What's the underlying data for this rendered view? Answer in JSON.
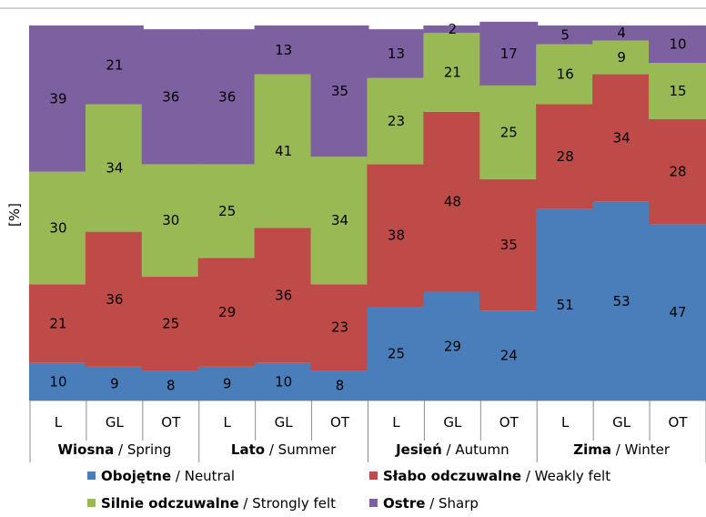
{
  "chart_data": {
    "type": "bar",
    "stacked": true,
    "ylabel": "[%]",
    "ylim": [
      0,
      100
    ],
    "categories": [
      "L",
      "GL",
      "OT",
      "L",
      "GL",
      "OT",
      "L",
      "GL",
      "OT",
      "L",
      "GL",
      "OT"
    ],
    "groups": [
      {
        "name_pl": "Wiosna",
        "name_en": " / Spring"
      },
      {
        "name_pl": "Lato",
        "name_en": " / Summer"
      },
      {
        "name_pl": "Jesień",
        "name_en": " / Autumn"
      },
      {
        "name_pl": "Zima",
        "name_en": " / Winter"
      }
    ],
    "series": [
      {
        "name": "Obojętne / Neutral",
        "name_pl": "Obojętne",
        "name_en": " / Neutral",
        "color": "#4a7ebb",
        "values": [
          10,
          9,
          8,
          9,
          10,
          8,
          25,
          29,
          24,
          51,
          53,
          47
        ]
      },
      {
        "name": "Słabo odczuwalne / Weakly felt",
        "name_pl": "Słabo odczuwalne",
        "name_en": " / Weakly felt",
        "color": "#be4b48",
        "values": [
          21,
          36,
          25,
          29,
          36,
          23,
          38,
          48,
          35,
          28,
          34,
          28
        ]
      },
      {
        "name": "Silnie odczuwalne / Strongly felt",
        "name_pl": "Silnie odczuwalne",
        "name_en": " / Strongly felt",
        "color": "#98b954",
        "values": [
          30,
          34,
          30,
          25,
          41,
          34,
          23,
          21,
          25,
          16,
          9,
          15
        ]
      },
      {
        "name": "Ostre / Sharp",
        "name_pl": "Ostre",
        "name_en": " / Sharp",
        "color": "#7d60a0",
        "values": [
          39,
          21,
          36,
          36,
          13,
          35,
          13,
          2,
          17,
          5,
          4,
          10
        ]
      }
    ],
    "legend_position": "bottom",
    "grid": false
  }
}
